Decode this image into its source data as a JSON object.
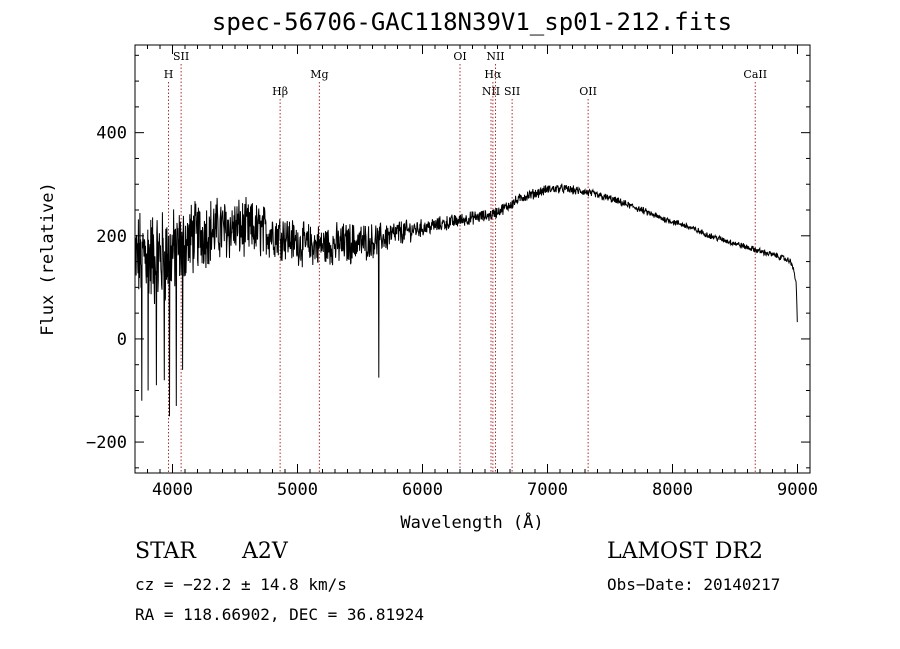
{
  "chart_data": {
    "type": "line",
    "title": "spec-56706-GAC118N39V1_sp01-212.fits",
    "xlabel": "Wavelength (Å)",
    "ylabel": "Flux (relative)",
    "xlim": [
      3700,
      9100
    ],
    "ylim": [
      -260,
      570
    ],
    "xticks": [
      4000,
      5000,
      6000,
      7000,
      8000,
      9000
    ],
    "yticks": [
      -200,
      0,
      200,
      400
    ],
    "grid": false,
    "series": [
      {
        "color": "#000000",
        "anchors": [
          [
            3700,
            150
          ],
          [
            3780,
            170
          ],
          [
            3860,
            150
          ],
          [
            3950,
            160
          ],
          [
            4050,
            175
          ],
          [
            4150,
            195
          ],
          [
            4300,
            210
          ],
          [
            4500,
            215
          ],
          [
            4700,
            210
          ],
          [
            4900,
            200
          ],
          [
            5000,
            185
          ],
          [
            5200,
            180
          ],
          [
            5400,
            185
          ],
          [
            5600,
            190
          ],
          [
            5800,
            205
          ],
          [
            6000,
            215
          ],
          [
            6200,
            225
          ],
          [
            6400,
            235
          ],
          [
            6550,
            240
          ],
          [
            6700,
            260
          ],
          [
            6800,
            275
          ],
          [
            6900,
            282
          ],
          [
            7000,
            290
          ],
          [
            7100,
            292
          ],
          [
            7300,
            285
          ],
          [
            7500,
            272
          ],
          [
            7700,
            255
          ],
          [
            7900,
            235
          ],
          [
            8100,
            220
          ],
          [
            8300,
            200
          ],
          [
            8500,
            185
          ],
          [
            8700,
            170
          ],
          [
            8850,
            160
          ],
          [
            8950,
            150
          ],
          [
            8990,
            110
          ],
          [
            9000,
            10
          ]
        ],
        "noise": [
          [
            3700,
            75
          ],
          [
            3900,
            85
          ],
          [
            4050,
            65
          ],
          [
            4300,
            55
          ],
          [
            4700,
            45
          ],
          [
            5000,
            35
          ],
          [
            5400,
            35
          ],
          [
            5700,
            25
          ],
          [
            6000,
            14
          ],
          [
            6500,
            10
          ],
          [
            7000,
            8
          ],
          [
            8000,
            5
          ],
          [
            9000,
            5
          ]
        ],
        "dips": [
          [
            3755,
            -120
          ],
          [
            3805,
            -100
          ],
          [
            3870,
            -90
          ],
          [
            3935,
            -80
          ],
          [
            3975,
            -150
          ],
          [
            4030,
            -130
          ],
          [
            4080,
            -60
          ],
          [
            5650,
            -75
          ]
        ]
      }
    ],
    "lines": [
      {
        "label": "H",
        "x": 3968,
        "row": 2
      },
      {
        "label": "SII",
        "x": 4069,
        "row": 1
      },
      {
        "label": "Hβ",
        "x": 4861,
        "row": 3
      },
      {
        "label": "Mg",
        "x": 5175,
        "row": 2
      },
      {
        "label": "OI",
        "x": 6300,
        "row": 1
      },
      {
        "label": "NII",
        "x": 6548,
        "row": 3
      },
      {
        "label": "Hα",
        "x": 6563,
        "row": 2
      },
      {
        "label": "NII",
        "x": 6584,
        "row": 1
      },
      {
        "label": "SII",
        "x": 6717,
        "row": 3
      },
      {
        "label": "OII",
        "x": 7325,
        "row": 3
      },
      {
        "label": "CaII",
        "x": 8662,
        "row": 2
      }
    ]
  },
  "info": {
    "object_type": "STAR",
    "subclass": "A2V",
    "survey": "LAMOST DR2",
    "redshift": "cz = −22.2 ± 14.8 km/s",
    "obs_date": "Obs−Date: 20140217",
    "coords": "RA = 118.66902, DEC =  36.81924"
  }
}
